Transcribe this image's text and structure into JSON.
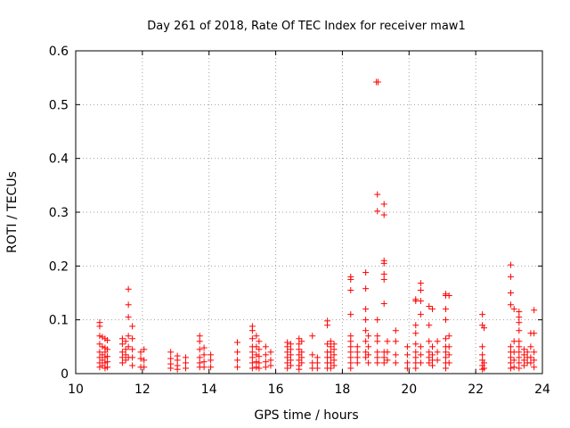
{
  "chart_data": {
    "type": "scatter",
    "title": "Day 261 of 2018, Rate Of TEC Index for receiver maw1",
    "xlabel": "GPS time / hours",
    "ylabel": "ROTI / TECUs",
    "xlim": [
      10,
      24
    ],
    "ylim": [
      0,
      0.6
    ],
    "x_ticks": [
      10,
      12,
      14,
      16,
      18,
      20,
      22,
      24
    ],
    "y_ticks": [
      0,
      0.1,
      0.2,
      0.3,
      0.4,
      0.5,
      0.6
    ],
    "x_tick_labels": [
      "10",
      "12",
      "14",
      "16",
      "18",
      "20",
      "22",
      "24"
    ],
    "y_tick_labels": [
      "0",
      "0.1",
      "0.2",
      "0.3",
      "0.4",
      "0.5",
      "0.6"
    ],
    "grid": true,
    "marker": "plus",
    "color": "#ff0000",
    "series": [
      {
        "name": "maw1",
        "points": [
          [
            10.72,
            0.095
          ],
          [
            10.72,
            0.088
          ],
          [
            10.72,
            0.07
          ],
          [
            10.72,
            0.055
          ],
          [
            10.72,
            0.04
          ],
          [
            10.72,
            0.03
          ],
          [
            10.72,
            0.02
          ],
          [
            10.72,
            0.012
          ],
          [
            10.8,
            0.068
          ],
          [
            10.8,
            0.05
          ],
          [
            10.8,
            0.035
          ],
          [
            10.8,
            0.025
          ],
          [
            10.8,
            0.015
          ],
          [
            10.88,
            0.065
          ],
          [
            10.88,
            0.048
          ],
          [
            10.88,
            0.04
          ],
          [
            10.88,
            0.03
          ],
          [
            10.88,
            0.02
          ],
          [
            10.88,
            0.01
          ],
          [
            10.95,
            0.062
          ],
          [
            10.95,
            0.045
          ],
          [
            10.95,
            0.032
          ],
          [
            10.95,
            0.022
          ],
          [
            10.95,
            0.012
          ],
          [
            11.4,
            0.065
          ],
          [
            11.4,
            0.055
          ],
          [
            11.4,
            0.04
          ],
          [
            11.4,
            0.03
          ],
          [
            11.4,
            0.02
          ],
          [
            11.5,
            0.06
          ],
          [
            11.5,
            0.045
          ],
          [
            11.5,
            0.035
          ],
          [
            11.5,
            0.025
          ],
          [
            11.58,
            0.157
          ],
          [
            11.58,
            0.128
          ],
          [
            11.58,
            0.105
          ],
          [
            11.58,
            0.07
          ],
          [
            11.58,
            0.05
          ],
          [
            11.58,
            0.03
          ],
          [
            11.7,
            0.088
          ],
          [
            11.7,
            0.065
          ],
          [
            11.7,
            0.045
          ],
          [
            11.7,
            0.03
          ],
          [
            11.7,
            0.015
          ],
          [
            11.95,
            0.04
          ],
          [
            11.95,
            0.028
          ],
          [
            11.95,
            0.012
          ],
          [
            12.05,
            0.045
          ],
          [
            12.05,
            0.025
          ],
          [
            12.05,
            0.012
          ],
          [
            12.85,
            0.04
          ],
          [
            12.85,
            0.028
          ],
          [
            12.85,
            0.018
          ],
          [
            12.85,
            0.01
          ],
          [
            13.05,
            0.033
          ],
          [
            13.05,
            0.025
          ],
          [
            13.05,
            0.015
          ],
          [
            13.05,
            0.008
          ],
          [
            13.3,
            0.03
          ],
          [
            13.3,
            0.02
          ],
          [
            13.3,
            0.01
          ],
          [
            13.72,
            0.07
          ],
          [
            13.72,
            0.06
          ],
          [
            13.72,
            0.045
          ],
          [
            13.72,
            0.03
          ],
          [
            13.72,
            0.02
          ],
          [
            13.72,
            0.012
          ],
          [
            13.85,
            0.048
          ],
          [
            13.85,
            0.035
          ],
          [
            13.85,
            0.022
          ],
          [
            13.85,
            0.012
          ],
          [
            14.05,
            0.035
          ],
          [
            14.05,
            0.025
          ],
          [
            14.05,
            0.012
          ],
          [
            14.85,
            0.058
          ],
          [
            14.85,
            0.04
          ],
          [
            14.85,
            0.025
          ],
          [
            14.85,
            0.012
          ],
          [
            15.3,
            0.088
          ],
          [
            15.3,
            0.08
          ],
          [
            15.3,
            0.065
          ],
          [
            15.3,
            0.05
          ],
          [
            15.3,
            0.04
          ],
          [
            15.3,
            0.03
          ],
          [
            15.3,
            0.02
          ],
          [
            15.3,
            0.01
          ],
          [
            15.42,
            0.07
          ],
          [
            15.42,
            0.05
          ],
          [
            15.42,
            0.035
          ],
          [
            15.42,
            0.022
          ],
          [
            15.42,
            0.012
          ],
          [
            15.5,
            0.06
          ],
          [
            15.5,
            0.045
          ],
          [
            15.5,
            0.032
          ],
          [
            15.5,
            0.02
          ],
          [
            15.5,
            0.01
          ],
          [
            15.7,
            0.05
          ],
          [
            15.7,
            0.035
          ],
          [
            15.7,
            0.022
          ],
          [
            15.7,
            0.012
          ],
          [
            15.85,
            0.04
          ],
          [
            15.85,
            0.025
          ],
          [
            15.85,
            0.015
          ],
          [
            16.35,
            0.058
          ],
          [
            16.35,
            0.05
          ],
          [
            16.35,
            0.04
          ],
          [
            16.35,
            0.03
          ],
          [
            16.35,
            0.02
          ],
          [
            16.35,
            0.01
          ],
          [
            16.45,
            0.055
          ],
          [
            16.45,
            0.045
          ],
          [
            16.45,
            0.035
          ],
          [
            16.45,
            0.025
          ],
          [
            16.45,
            0.015
          ],
          [
            16.7,
            0.065
          ],
          [
            16.7,
            0.055
          ],
          [
            16.7,
            0.045
          ],
          [
            16.7,
            0.035
          ],
          [
            16.7,
            0.025
          ],
          [
            16.7,
            0.015
          ],
          [
            16.7,
            0.008
          ],
          [
            16.78,
            0.06
          ],
          [
            16.78,
            0.04
          ],
          [
            16.78,
            0.03
          ],
          [
            16.78,
            0.02
          ],
          [
            17.1,
            0.07
          ],
          [
            17.1,
            0.035
          ],
          [
            17.1,
            0.02
          ],
          [
            17.1,
            0.01
          ],
          [
            17.25,
            0.03
          ],
          [
            17.25,
            0.02
          ],
          [
            17.25,
            0.01
          ],
          [
            17.55,
            0.098
          ],
          [
            17.55,
            0.09
          ],
          [
            17.55,
            0.055
          ],
          [
            17.55,
            0.04
          ],
          [
            17.55,
            0.03
          ],
          [
            17.55,
            0.02
          ],
          [
            17.55,
            0.01
          ],
          [
            17.65,
            0.06
          ],
          [
            17.65,
            0.05
          ],
          [
            17.65,
            0.04
          ],
          [
            17.65,
            0.03
          ],
          [
            17.65,
            0.02
          ],
          [
            17.65,
            0.01
          ],
          [
            17.75,
            0.055
          ],
          [
            17.75,
            0.045
          ],
          [
            17.75,
            0.035
          ],
          [
            17.75,
            0.025
          ],
          [
            17.75,
            0.015
          ],
          [
            18.25,
            0.18
          ],
          [
            18.25,
            0.175
          ],
          [
            18.25,
            0.155
          ],
          [
            18.25,
            0.11
          ],
          [
            18.25,
            0.07
          ],
          [
            18.25,
            0.06
          ],
          [
            18.25,
            0.05
          ],
          [
            18.25,
            0.04
          ],
          [
            18.25,
            0.03
          ],
          [
            18.25,
            0.02
          ],
          [
            18.25,
            0.01
          ],
          [
            18.45,
            0.05
          ],
          [
            18.45,
            0.04
          ],
          [
            18.45,
            0.03
          ],
          [
            18.45,
            0.02
          ],
          [
            18.7,
            0.188
          ],
          [
            18.7,
            0.158
          ],
          [
            18.7,
            0.12
          ],
          [
            18.7,
            0.1
          ],
          [
            18.7,
            0.08
          ],
          [
            18.7,
            0.06
          ],
          [
            18.7,
            0.04
          ],
          [
            18.7,
            0.03
          ],
          [
            18.78,
            0.07
          ],
          [
            18.78,
            0.05
          ],
          [
            18.78,
            0.035
          ],
          [
            18.78,
            0.02
          ],
          [
            19.02,
            0.542
          ],
          [
            19.07,
            0.542
          ],
          [
            19.05,
            0.333
          ],
          [
            19.05,
            0.302
          ],
          [
            19.05,
            0.1
          ],
          [
            19.05,
            0.07
          ],
          [
            19.05,
            0.06
          ],
          [
            19.05,
            0.04
          ],
          [
            19.05,
            0.03
          ],
          [
            19.05,
            0.02
          ],
          [
            19.25,
            0.315
          ],
          [
            19.25,
            0.295
          ],
          [
            19.25,
            0.21
          ],
          [
            19.25,
            0.205
          ],
          [
            19.25,
            0.185
          ],
          [
            19.25,
            0.175
          ],
          [
            19.25,
            0.13
          ],
          [
            19.25,
            0.04
          ],
          [
            19.25,
            0.03
          ],
          [
            19.25,
            0.02
          ],
          [
            19.35,
            0.06
          ],
          [
            19.35,
            0.04
          ],
          [
            19.35,
            0.025
          ],
          [
            19.6,
            0.08
          ],
          [
            19.6,
            0.06
          ],
          [
            19.6,
            0.035
          ],
          [
            19.6,
            0.02
          ],
          [
            19.95,
            0.05
          ],
          [
            19.95,
            0.035
          ],
          [
            19.95,
            0.02
          ],
          [
            19.95,
            0.01
          ],
          [
            20.2,
            0.138
          ],
          [
            20.2,
            0.135
          ],
          [
            20.2,
            0.09
          ],
          [
            20.2,
            0.075
          ],
          [
            20.2,
            0.055
          ],
          [
            20.2,
            0.04
          ],
          [
            20.2,
            0.03
          ],
          [
            20.2,
            0.02
          ],
          [
            20.2,
            0.01
          ],
          [
            20.35,
            0.168
          ],
          [
            20.35,
            0.155
          ],
          [
            20.35,
            0.135
          ],
          [
            20.35,
            0.11
          ],
          [
            20.35,
            0.05
          ],
          [
            20.35,
            0.035
          ],
          [
            20.35,
            0.02
          ],
          [
            20.6,
            0.125
          ],
          [
            20.6,
            0.09
          ],
          [
            20.6,
            0.06
          ],
          [
            20.6,
            0.04
          ],
          [
            20.6,
            0.03
          ],
          [
            20.6,
            0.02
          ],
          [
            20.7,
            0.12
          ],
          [
            20.7,
            0.05
          ],
          [
            20.7,
            0.035
          ],
          [
            20.7,
            0.025
          ],
          [
            20.7,
            0.015
          ],
          [
            20.85,
            0.06
          ],
          [
            20.85,
            0.04
          ],
          [
            20.85,
            0.025
          ],
          [
            21.1,
            0.148
          ],
          [
            21.1,
            0.145
          ],
          [
            21.1,
            0.12
          ],
          [
            21.1,
            0.1
          ],
          [
            21.1,
            0.065
          ],
          [
            21.1,
            0.05
          ],
          [
            21.1,
            0.04
          ],
          [
            21.1,
            0.03
          ],
          [
            21.1,
            0.02
          ],
          [
            21.1,
            0.01
          ],
          [
            21.2,
            0.145
          ],
          [
            21.2,
            0.07
          ],
          [
            21.2,
            0.05
          ],
          [
            21.2,
            0.035
          ],
          [
            21.2,
            0.02
          ],
          [
            22.2,
            0.11
          ],
          [
            22.2,
            0.09
          ],
          [
            22.2,
            0.05
          ],
          [
            22.2,
            0.035
          ],
          [
            22.2,
            0.025
          ],
          [
            22.2,
            0.015
          ],
          [
            22.2,
            0.008
          ],
          [
            22.25,
            0.085
          ],
          [
            22.25,
            0.02
          ],
          [
            22.25,
            0.01
          ],
          [
            23.05,
            0.202
          ],
          [
            23.05,
            0.18
          ],
          [
            23.05,
            0.15
          ],
          [
            23.05,
            0.128
          ],
          [
            23.05,
            0.05
          ],
          [
            23.05,
            0.04
          ],
          [
            23.05,
            0.03
          ],
          [
            23.05,
            0.02
          ],
          [
            23.05,
            0.01
          ],
          [
            23.15,
            0.12
          ],
          [
            23.15,
            0.06
          ],
          [
            23.15,
            0.04
          ],
          [
            23.15,
            0.025
          ],
          [
            23.15,
            0.012
          ],
          [
            23.3,
            0.115
          ],
          [
            23.3,
            0.105
          ],
          [
            23.3,
            0.095
          ],
          [
            23.3,
            0.08
          ],
          [
            23.3,
            0.06
          ],
          [
            23.3,
            0.05
          ],
          [
            23.3,
            0.04
          ],
          [
            23.3,
            0.03
          ],
          [
            23.3,
            0.02
          ],
          [
            23.3,
            0.01
          ],
          [
            23.45,
            0.045
          ],
          [
            23.45,
            0.035
          ],
          [
            23.45,
            0.025
          ],
          [
            23.45,
            0.015
          ],
          [
            23.55,
            0.04
          ],
          [
            23.55,
            0.03
          ],
          [
            23.55,
            0.02
          ],
          [
            23.65,
            0.075
          ],
          [
            23.65,
            0.05
          ],
          [
            23.65,
            0.03
          ],
          [
            23.65,
            0.02
          ],
          [
            23.75,
            0.118
          ],
          [
            23.75,
            0.075
          ],
          [
            23.75,
            0.04
          ],
          [
            23.75,
            0.025
          ],
          [
            23.75,
            0.012
          ]
        ]
      }
    ]
  }
}
